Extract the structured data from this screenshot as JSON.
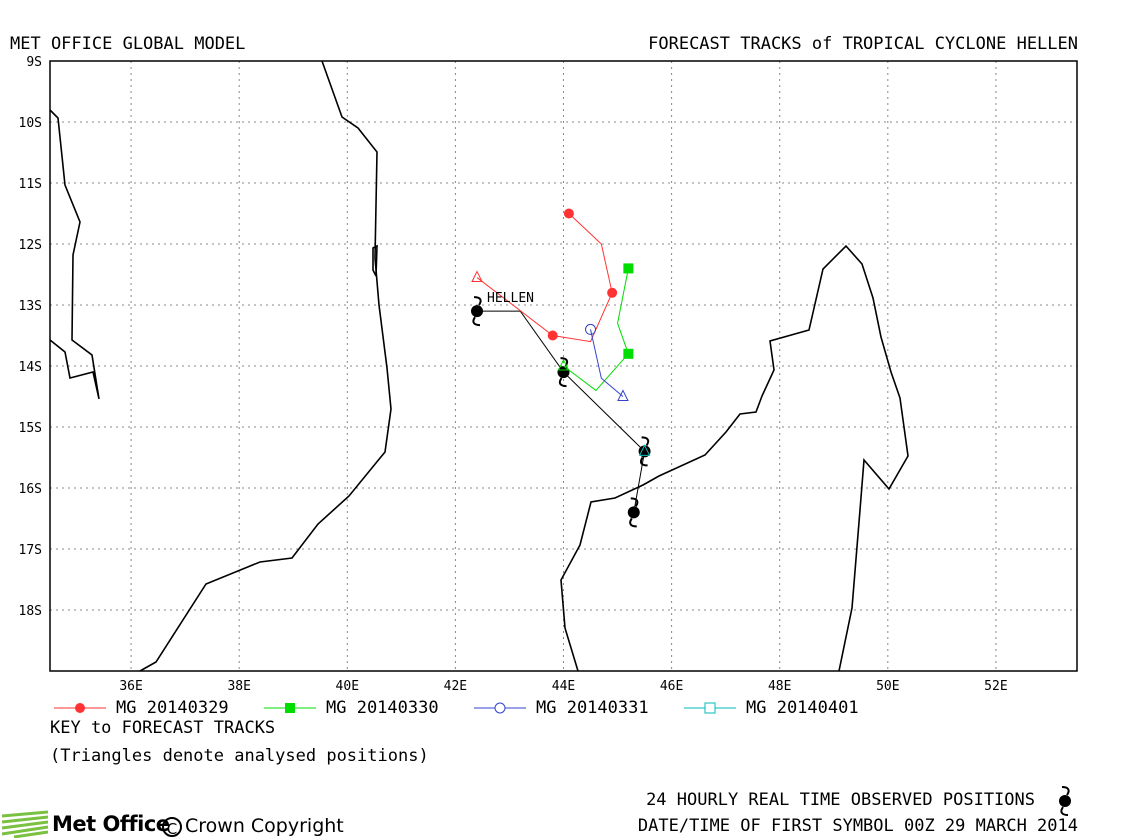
{
  "header": {
    "left_title": "MET OFFICE GLOBAL MODEL",
    "right_title": "FORECAST TRACKS of TROPICAL CYCLONE HELLEN"
  },
  "map": {
    "lon_range": [
      34.5,
      53.5
    ],
    "lat_range": [
      -19.0,
      -9.0
    ],
    "x_ticks": [
      "36E",
      "38E",
      "40E",
      "42E",
      "44E",
      "46E",
      "48E",
      "50E",
      "52E"
    ],
    "y_ticks": [
      "9S",
      "10S",
      "11S",
      "12S",
      "13S",
      "14S",
      "15S",
      "16S",
      "17S",
      "18S"
    ],
    "grid": "dotted",
    "storm_label": "HELLEN",
    "colors": {
      "track_0329": "#ff3333",
      "track_0330": "#00dd00",
      "track_0331": "#3344cc",
      "track_0401": "#00bbbb",
      "observed": "#000000",
      "coastline": "#000000"
    }
  },
  "chart_data": {
    "type": "map",
    "observed_track": {
      "symbol": "cyclone",
      "interval_hours": 24,
      "points": [
        {
          "lon": 42.4,
          "lat": -13.1
        },
        {
          "lon": 43.2,
          "lat": -13.1
        },
        {
          "lon": 44.0,
          "lat": -14.1
        },
        {
          "lon": 45.5,
          "lat": -15.4
        },
        {
          "lon": 45.3,
          "lat": -16.4
        }
      ]
    },
    "series": [
      {
        "name": "MG 20140329",
        "marker": "filled-circle",
        "analysis": {
          "lon": 42.4,
          "lat": -12.55
        },
        "points": [
          {
            "lon": 42.4,
            "lat": -12.55
          },
          {
            "lon": 43.8,
            "lat": -13.5
          },
          {
            "lon": 44.5,
            "lat": -13.6
          },
          {
            "lon": 44.9,
            "lat": -12.8
          },
          {
            "lon": 44.7,
            "lat": -12.0
          },
          {
            "lon": 44.1,
            "lat": -11.5
          }
        ],
        "symbols_at": [
          1,
          3,
          5
        ]
      },
      {
        "name": "MG 20140330",
        "marker": "filled-square",
        "analysis": {
          "lon": 44.0,
          "lat": -14.0
        },
        "points": [
          {
            "lon": 44.0,
            "lat": -14.0
          },
          {
            "lon": 44.6,
            "lat": -14.4
          },
          {
            "lon": 44.9,
            "lat": -14.1
          },
          {
            "lon": 45.2,
            "lat": -13.8
          },
          {
            "lon": 45.0,
            "lat": -13.3
          },
          {
            "lon": 45.2,
            "lat": -12.4
          }
        ],
        "symbols_at": [
          3,
          5
        ]
      },
      {
        "name": "MG 20140331",
        "marker": "open-circle",
        "analysis": {
          "lon": 45.1,
          "lat": -14.5
        },
        "points": [
          {
            "lon": 45.1,
            "lat": -14.5
          },
          {
            "lon": 44.7,
            "lat": -14.2
          },
          {
            "lon": 44.5,
            "lat": -13.4
          }
        ],
        "symbols_at": [
          2
        ]
      },
      {
        "name": "MG 20140401",
        "marker": "open-square",
        "analysis": {
          "lon": 45.5,
          "lat": -15.4
        },
        "points": [
          {
            "lon": 45.5,
            "lat": -15.4
          }
        ],
        "symbols_at": []
      }
    ]
  },
  "legend": {
    "items": [
      {
        "label": "MG 20140329",
        "color": "#ff3333",
        "marker": "filled-circle"
      },
      {
        "label": "MG 20140330",
        "color": "#00dd00",
        "marker": "filled-square"
      },
      {
        "label": "MG 20140331",
        "color": "#3344cc",
        "marker": "open-circle"
      },
      {
        "label": "MG 20140401",
        "color": "#00bbbb",
        "marker": "open-square"
      }
    ],
    "key_title": "KEY to FORECAST TRACKS",
    "key_note": "(Triangles denote analysed positions)"
  },
  "footer": {
    "brand": "Met Office",
    "copyright": "Crown Copyright",
    "copyright_symbol": "C",
    "observed_note": "24 HOURLY REAL TIME OBSERVED POSITIONS",
    "datetime_note": "DATE/TIME OF FIRST SYMBOL 00Z 29 MARCH 2014"
  }
}
